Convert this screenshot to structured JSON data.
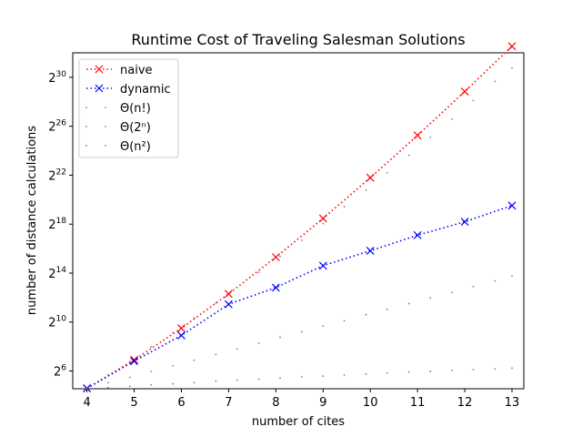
{
  "chart_data": {
    "type": "line",
    "title": "Runtime Cost of Traveling Salesman Solutions",
    "xlabel": "number of cites",
    "ylabel": "number of distance calculations",
    "xlim": [
      3.7,
      13.25
    ],
    "ylim_log2": [
      4.55,
      32.0
    ],
    "y_scale": "log2",
    "x_ticks": [
      4,
      5,
      6,
      7,
      8,
      9,
      10,
      11,
      12,
      13
    ],
    "y_ticks": [
      {
        "exp": 6,
        "base": "2",
        "power": "6"
      },
      {
        "exp": 10,
        "base": "2",
        "power": "10"
      },
      {
        "exp": 14,
        "base": "2",
        "power": "14"
      },
      {
        "exp": 18,
        "base": "2",
        "power": "18"
      },
      {
        "exp": 22,
        "base": "2",
        "power": "22"
      },
      {
        "exp": 26,
        "base": "2",
        "power": "26"
      },
      {
        "exp": 30,
        "base": "2",
        "power": "30"
      }
    ],
    "legend_position": "upper-left",
    "series": [
      {
        "name": "naive",
        "style": "dotted-x",
        "color": "#ff0000",
        "x": [
          4,
          5,
          6,
          7,
          8,
          9,
          10,
          11,
          12,
          13
        ],
        "y": [
          24,
          120,
          720,
          5040,
          40320,
          362880,
          3628800,
          39916800,
          479001600,
          6227020800
        ]
      },
      {
        "name": "dynamic",
        "style": "dotted-x",
        "color": "#0000ff",
        "x": [
          4,
          5,
          6,
          7,
          8,
          9,
          10,
          11,
          12,
          13
        ],
        "y": [
          24,
          112,
          480,
          2800,
          7200,
          25000,
          58000,
          140000,
          300000,
          750000
        ]
      },
      {
        "name": "Θ(n!)",
        "style": "sparse-dots",
        "color": "#808080",
        "x": [
          4,
          4.45,
          4.91,
          5.36,
          5.82,
          6.27,
          6.73,
          7.18,
          7.64,
          8.09,
          8.55,
          9.0,
          9.45,
          9.91,
          10.36,
          10.82,
          11.27,
          11.73,
          12.18,
          12.64,
          13.0
        ],
        "y": [
          24,
          52,
          110,
          250,
          560,
          1300,
          3000,
          7200,
          17000,
          42000,
          105000,
          270000,
          700000,
          1800000,
          4800000,
          13000000,
          36000000,
          100000000,
          290000000,
          850000000,
          1800000000
        ]
      },
      {
        "name": "Θ(2ⁿ)",
        "style": "sparse-dots",
        "color": "#808080",
        "x": [
          4,
          4.45,
          4.91,
          5.36,
          5.82,
          6.27,
          6.73,
          7.18,
          7.64,
          8.09,
          8.55,
          9.0,
          9.45,
          9.91,
          10.36,
          10.82,
          11.27,
          11.73,
          12.18,
          12.64,
          13.0
        ],
        "y": [
          24,
          33,
          45,
          62,
          86,
          118,
          163,
          225,
          310,
          430,
          590,
          810,
          1100,
          1550,
          2100,
          2900,
          4000,
          5500,
          7600,
          10500,
          14000
        ]
      },
      {
        "name": "Θ(n²)",
        "style": "sparse-dots",
        "color": "#808080",
        "x": [
          4,
          4.45,
          4.91,
          5.36,
          5.82,
          6.27,
          6.73,
          7.18,
          7.64,
          8.09,
          8.55,
          9.0,
          9.45,
          9.91,
          10.36,
          10.82,
          11.27,
          11.73,
          12.18,
          12.64,
          13.0
        ],
        "y": [
          24,
          25,
          27,
          29,
          31,
          33,
          36,
          38,
          40,
          43,
          46,
          48,
          51,
          54,
          57,
          60,
          63,
          66,
          69,
          72,
          75
        ]
      }
    ]
  }
}
